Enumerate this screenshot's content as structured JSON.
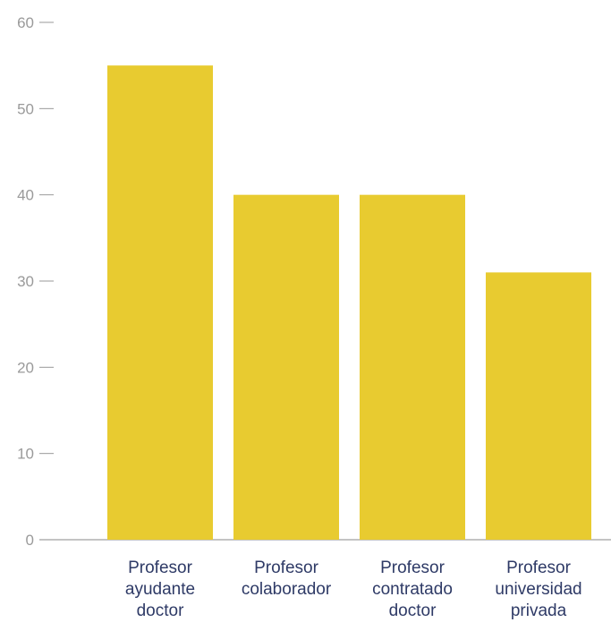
{
  "chart_data": {
    "type": "bar",
    "title": "",
    "xlabel": "",
    "ylabel": "",
    "categories": [
      "Profesor ayudante doctor",
      "Profesor colaborador",
      "Profesor contratado doctor",
      "Profesor universidad privada"
    ],
    "category_lines": [
      [
        "Profesor",
        "ayudante",
        "doctor"
      ],
      [
        "Profesor",
        "colaborador"
      ],
      [
        "Profesor",
        "contratado",
        "doctor"
      ],
      [
        "Profesor",
        "universidad",
        "privada"
      ]
    ],
    "values": [
      55,
      40,
      40,
      31
    ],
    "ylim": [
      0,
      60
    ],
    "yticks": [
      "0",
      "10",
      "20",
      "30",
      "40",
      "50",
      "60"
    ],
    "bar_color": "#e8cb30",
    "grid": false,
    "legend": "none"
  }
}
